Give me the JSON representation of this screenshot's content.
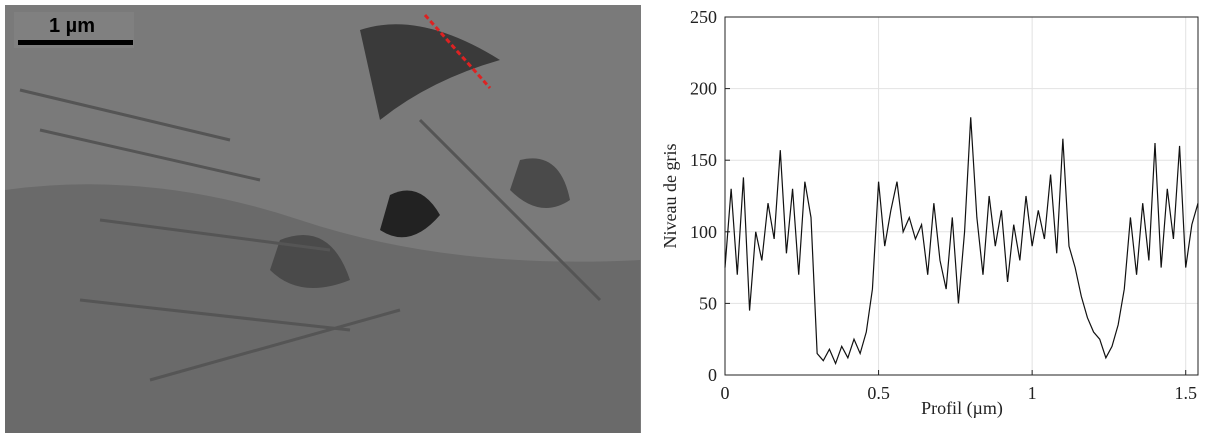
{
  "image": {
    "scale_bar": "1 µm"
  },
  "chart_data": {
    "type": "line",
    "xlabel": "Profil (µm)",
    "ylabel": "Niveau de gris",
    "xlim": [
      0,
      1.54
    ],
    "ylim": [
      0,
      250
    ],
    "xticks": [
      0,
      0.5,
      1,
      1.5
    ],
    "yticks": [
      0,
      50,
      100,
      150,
      200,
      250
    ],
    "grid": true,
    "x": [
      0,
      0.02,
      0.04,
      0.06,
      0.08,
      0.1,
      0.12,
      0.14,
      0.16,
      0.18,
      0.2,
      0.22,
      0.24,
      0.26,
      0.28,
      0.3,
      0.32,
      0.34,
      0.36,
      0.38,
      0.4,
      0.42,
      0.44,
      0.46,
      0.48,
      0.5,
      0.52,
      0.54,
      0.56,
      0.58,
      0.6,
      0.62,
      0.64,
      0.66,
      0.68,
      0.7,
      0.72,
      0.74,
      0.76,
      0.78,
      0.8,
      0.82,
      0.84,
      0.86,
      0.88,
      0.9,
      0.92,
      0.94,
      0.96,
      0.98,
      1,
      1.02,
      1.04,
      1.06,
      1.08,
      1.1,
      1.12,
      1.14,
      1.16,
      1.18,
      1.2,
      1.22,
      1.24,
      1.26,
      1.28,
      1.3,
      1.32,
      1.34,
      1.36,
      1.38,
      1.4,
      1.42,
      1.44,
      1.46,
      1.48,
      1.5,
      1.52,
      1.54
    ],
    "series": [
      {
        "name": "profil",
        "color": "#111111",
        "values": [
          75,
          130,
          70,
          138,
          45,
          100,
          80,
          120,
          95,
          157,
          85,
          130,
          70,
          135,
          110,
          15,
          10,
          18,
          8,
          20,
          12,
          25,
          15,
          30,
          60,
          135,
          90,
          115,
          135,
          100,
          110,
          95,
          105,
          70,
          120,
          80,
          60,
          110,
          50,
          100,
          180,
          110,
          70,
          125,
          90,
          115,
          65,
          105,
          80,
          125,
          90,
          115,
          95,
          140,
          85,
          165,
          90,
          75,
          55,
          40,
          30,
          25,
          12,
          20,
          35,
          60,
          110,
          70,
          120,
          80,
          162,
          75,
          130,
          95,
          160,
          75,
          105,
          120
        ]
      }
    ]
  }
}
